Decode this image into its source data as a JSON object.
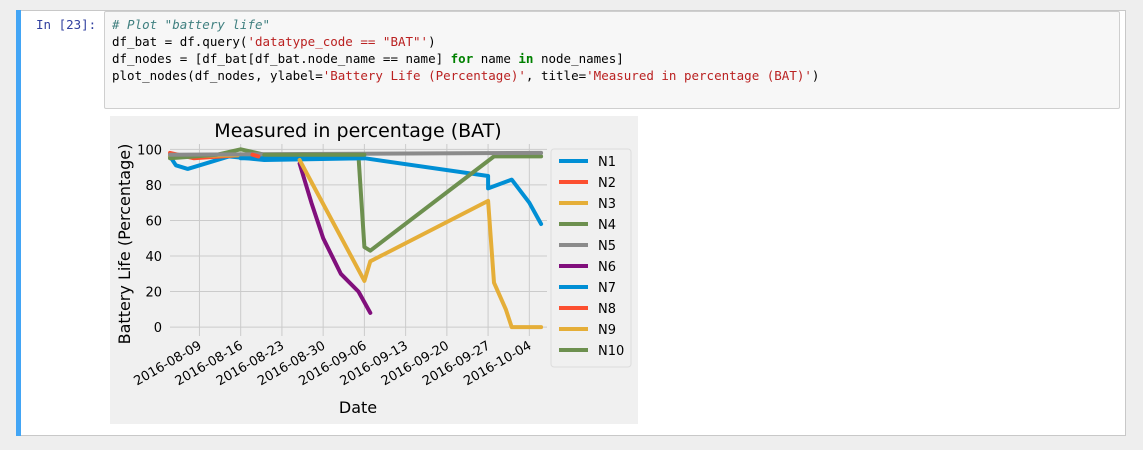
{
  "cell": {
    "prompt": "In [23]:",
    "code_lines": [
      [
        {
          "t": "# Plot \"battery life\"",
          "c": "cm"
        }
      ],
      [
        {
          "t": "df_bat = df.query(",
          "c": ""
        },
        {
          "t": "'datatype_code == \"BAT\"'",
          "c": "str"
        },
        {
          "t": ")",
          "c": ""
        }
      ],
      [
        {
          "t": "df_nodes = [df_bat[df_bat.node_name == name] ",
          "c": ""
        },
        {
          "t": "for",
          "c": "kw"
        },
        {
          "t": " name ",
          "c": ""
        },
        {
          "t": "in",
          "c": "kw"
        },
        {
          "t": " node_names]",
          "c": ""
        }
      ],
      [
        {
          "t": "plot_nodes(df_nodes, ylabel=",
          "c": ""
        },
        {
          "t": "'Battery Life (Percentage)'",
          "c": "str"
        },
        {
          "t": ", title=",
          "c": ""
        },
        {
          "t": "'Measured in percentage (BAT)'",
          "c": "str"
        },
        {
          "t": ")",
          "c": ""
        }
      ]
    ]
  },
  "chart_data": {
    "type": "line",
    "title": "Measured in percentage (BAT)",
    "xlabel": "Date",
    "ylabel": "Battery Life (Percentage)",
    "ylim": [
      -5,
      103
    ],
    "xlim": [
      "2016-08-04",
      "2016-10-07"
    ],
    "yticks": [
      0,
      20,
      40,
      60,
      80,
      100
    ],
    "xticks": [
      "2016-08-09",
      "2016-08-16",
      "2016-08-23",
      "2016-08-30",
      "2016-09-06",
      "2016-09-13",
      "2016-09-20",
      "2016-09-27",
      "2016-10-04"
    ],
    "grid": true,
    "legend_position": "right",
    "series": [
      {
        "name": "N1",
        "color": "#008fd5",
        "points": [
          [
            "2016-08-04",
            96
          ],
          [
            "2016-08-05",
            91
          ],
          [
            "2016-08-07",
            89
          ],
          [
            "2016-08-14",
            96
          ],
          [
            "2016-08-20",
            94
          ],
          [
            "2016-09-06",
            95
          ],
          [
            "2016-09-27",
            85
          ],
          [
            "2016-09-27",
            78
          ],
          [
            "2016-10-01",
            83
          ],
          [
            "2016-10-04",
            70
          ],
          [
            "2016-10-06",
            58
          ]
        ]
      },
      {
        "name": "N2",
        "color": "#fc4f30",
        "points": [
          [
            "2016-08-04",
            98
          ],
          [
            "2016-08-08",
            95
          ],
          [
            "2016-08-17",
            97
          ]
        ]
      },
      {
        "name": "N3",
        "color": "#e5ae38",
        "points": [
          [
            "2016-08-04",
            96
          ],
          [
            "2016-08-20",
            97
          ],
          [
            "2016-08-27",
            96
          ]
        ]
      },
      {
        "name": "N4",
        "color": "#6d904f",
        "points": [
          [
            "2016-08-04",
            95
          ],
          [
            "2016-08-12",
            97
          ],
          [
            "2016-08-16",
            100
          ],
          [
            "2016-08-20",
            97
          ],
          [
            "2016-08-30",
            97
          ],
          [
            "2016-09-05",
            96
          ],
          [
            "2016-09-06",
            45
          ],
          [
            "2016-09-07",
            43
          ],
          [
            "2016-09-28",
            96
          ],
          [
            "2016-10-06",
            96
          ]
        ]
      },
      {
        "name": "N5",
        "color": "#8b8b8b",
        "points": [
          [
            "2016-08-04",
            97
          ],
          [
            "2016-10-06",
            98
          ]
        ]
      },
      {
        "name": "N6",
        "color": "#810f7c",
        "points": [
          [
            "2016-08-26",
            92
          ],
          [
            "2016-08-28",
            70
          ],
          [
            "2016-08-30",
            50
          ],
          [
            "2016-09-02",
            30
          ],
          [
            "2016-09-05",
            20
          ],
          [
            "2016-09-07",
            8
          ]
        ]
      },
      {
        "name": "N7",
        "color": "#008fd5",
        "points": [
          [
            "2016-08-16",
            95
          ],
          [
            "2016-09-06",
            95
          ]
        ]
      },
      {
        "name": "N8",
        "color": "#fc4f30",
        "points": [
          [
            "2016-08-18",
            97
          ],
          [
            "2016-08-19",
            96
          ]
        ]
      },
      {
        "name": "N9",
        "color": "#e5ae38",
        "points": [
          [
            "2016-08-26",
            94
          ],
          [
            "2016-09-06",
            26
          ],
          [
            "2016-09-07",
            37
          ],
          [
            "2016-09-27",
            71
          ],
          [
            "2016-09-28",
            25
          ],
          [
            "2016-09-30",
            10
          ],
          [
            "2016-10-01",
            0
          ],
          [
            "2016-10-06",
            0
          ]
        ]
      },
      {
        "name": "N10",
        "color": "#6d904f",
        "points": [
          [
            "2016-08-20",
            97
          ],
          [
            "2016-09-06",
            97
          ]
        ]
      }
    ]
  }
}
